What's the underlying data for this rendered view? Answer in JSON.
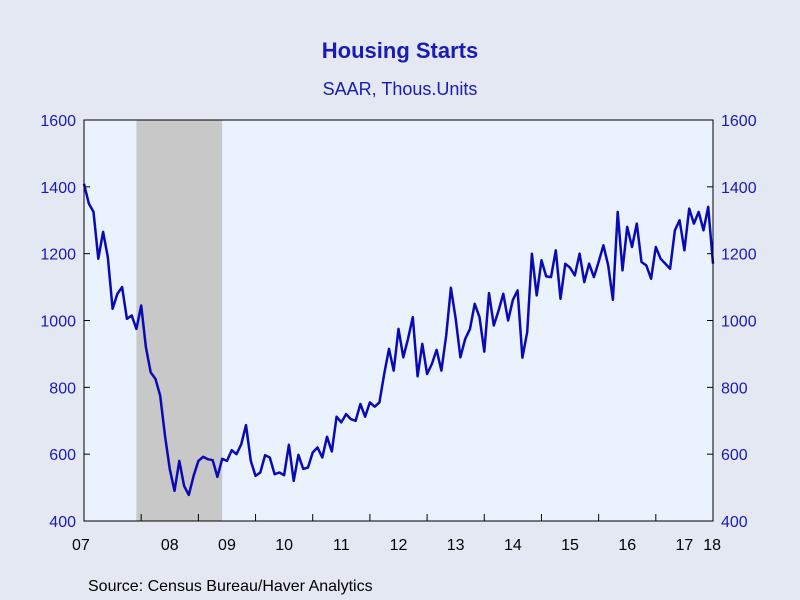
{
  "chart_data": {
    "type": "line",
    "title": "Housing Starts",
    "subtitle": "SAAR, Thous.Units",
    "source": "Source:  Census Bureau/Haver Analytics",
    "ylim": [
      400,
      1600
    ],
    "y_ticks": [
      400,
      600,
      800,
      1000,
      1200,
      1400,
      1600
    ],
    "y_tick_labels": [
      "400",
      "600",
      "800",
      "1000",
      "1200",
      "1400",
      "1600"
    ],
    "x_tick_labels": [
      "07",
      "08",
      "09",
      "10",
      "11",
      "12",
      "13",
      "14",
      "15",
      "16",
      "17",
      "18"
    ],
    "x_start": "2007-01",
    "recession": {
      "start": "2007-12",
      "end": "2009-06"
    },
    "line_color": "#0a0ab4",
    "recession_color": "#c8c8c8",
    "plot_background": "#eaf2fd",
    "grid": false,
    "series": [
      {
        "values": [
          1409,
          1350,
          1325,
          1185,
          1265,
          1190,
          1035,
          1080,
          1100,
          1005,
          1015,
          975,
          1045,
          920,
          845,
          825,
          775,
          655,
          555,
          490,
          580,
          505,
          478,
          535,
          580,
          592,
          585,
          582,
          532,
          586,
          580,
          612,
          600,
          630,
          687,
          580,
          535,
          545,
          597,
          590,
          540,
          545,
          537,
          628,
          520,
          598,
          556,
          560,
          605,
          620,
          590,
          652,
          608,
          712,
          695,
          720,
          705,
          700,
          750,
          712,
          755,
          742,
          755,
          840,
          915,
          850,
          975,
          890,
          945,
          1010,
          833,
          930,
          840,
          870,
          912,
          850,
          955,
          1098,
          1005,
          890,
          945,
          975,
          1050,
          1010,
          907,
          1082,
          985,
          1030,
          1080,
          1000,
          1062,
          1090,
          889,
          965,
          1200,
          1075,
          1180,
          1132,
          1130,
          1210,
          1065,
          1170,
          1158,
          1135,
          1200,
          1115,
          1170,
          1130,
          1175,
          1225,
          1165,
          1062,
          1325,
          1150,
          1280,
          1220,
          1290,
          1175,
          1165,
          1125,
          1220,
          1185,
          1170,
          1155,
          1270,
          1300,
          1210,
          1335,
          1290,
          1325,
          1270,
          1340,
          1170
        ],
        "x_end": "2018-01"
      }
    ]
  }
}
